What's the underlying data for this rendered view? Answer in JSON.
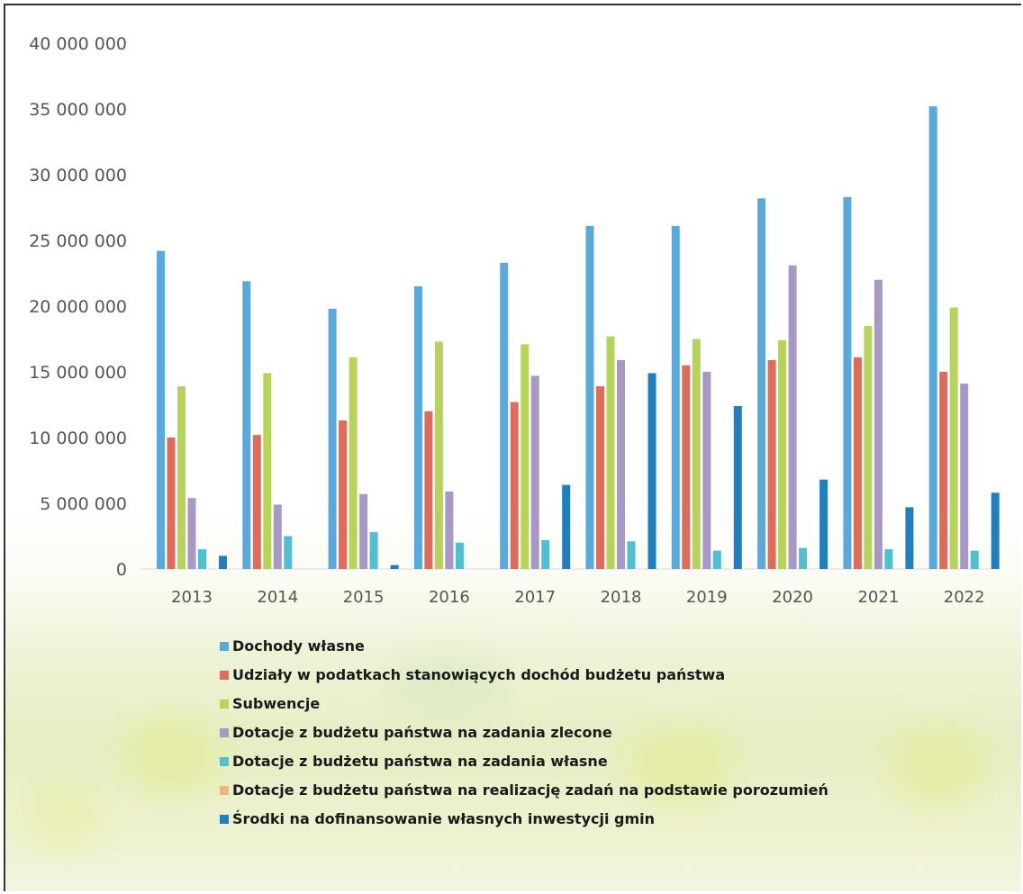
{
  "chart_data": {
    "type": "bar",
    "categories": [
      "2013",
      "2014",
      "2015",
      "2016",
      "2017",
      "2018",
      "2019",
      "2020",
      "2021",
      "2022"
    ],
    "yticks": [
      "0",
      "5 000 000",
      "10 000 000",
      "15 000 000",
      "20 000 000",
      "25 000 000",
      "30 000 000",
      "35 000 000",
      "40 000 000"
    ],
    "ylim": [
      0,
      40000000
    ],
    "legend_position": "bottom",
    "series": [
      {
        "name": "Dochody własne",
        "color": "#5aa9dd",
        "values": [
          24200000,
          21900000,
          19800000,
          21500000,
          23300000,
          26100000,
          26100000,
          28200000,
          28300000,
          35200000
        ]
      },
      {
        "name": "Udziały w podatkach stanowiących dochód budżetu państwa",
        "color": "#e06b5a",
        "values": [
          10000000,
          10200000,
          11300000,
          12000000,
          12700000,
          13900000,
          15500000,
          15900000,
          16100000,
          15000000
        ]
      },
      {
        "name": "Subwencje",
        "color": "#b6d45a",
        "values": [
          13900000,
          14900000,
          16100000,
          17300000,
          17100000,
          17700000,
          17500000,
          17400000,
          18500000,
          19900000
        ]
      },
      {
        "name": "Dotacje z budżetu państwa na zadania zlecone",
        "color": "#a898c6",
        "values": [
          5400000,
          4900000,
          5700000,
          5900000,
          14700000,
          15900000,
          15000000,
          23100000,
          22000000,
          14100000
        ]
      },
      {
        "name": "Dotacje z budżetu państwa na zadania własne",
        "color": "#4fc0d0",
        "values": [
          1500000,
          2500000,
          2800000,
          2000000,
          2200000,
          2100000,
          1400000,
          1600000,
          1500000,
          1400000
        ]
      },
      {
        "name": "Dotacje z budżetu państwa na realizację zadań na podstawie porozumień",
        "color": "#f4b183",
        "values": [
          0,
          0,
          0,
          0,
          0,
          0,
          0,
          0,
          0,
          0
        ]
      },
      {
        "name": "Środki na dofinansowanie własnych inwestycji gmin",
        "color": "#1f7fc0",
        "values": [
          1000000,
          0,
          300000,
          0,
          6400000,
          14900000,
          12400000,
          6800000,
          4700000,
          5800000
        ]
      }
    ]
  }
}
